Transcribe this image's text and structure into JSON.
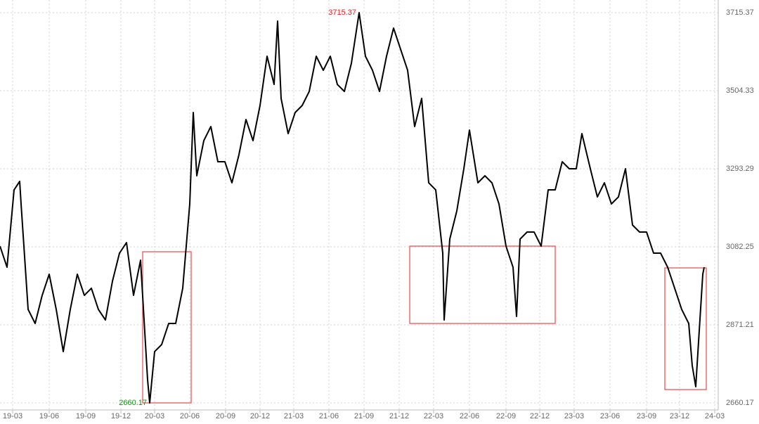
{
  "chart_data": {
    "type": "line",
    "x": [
      0,
      1,
      2,
      2.8,
      3,
      4,
      5,
      6,
      7,
      8,
      9,
      10,
      11,
      12,
      13,
      14,
      15,
      16,
      17,
      18,
      19,
      20,
      21,
      21.3,
      22,
      23,
      24,
      25,
      26,
      27,
      27.5,
      28,
      29,
      30,
      31,
      32,
      33,
      34,
      35,
      36,
      37,
      38,
      39,
      39.5,
      40,
      41,
      42,
      43,
      44,
      45,
      46,
      47,
      48,
      49,
      50,
      51.1,
      52,
      53,
      54,
      55,
      56,
      57,
      58,
      59,
      60,
      61,
      62,
      63,
      63.2,
      64,
      65,
      66,
      66.8,
      68,
      69,
      70,
      71,
      72,
      73,
      73.5,
      74,
      75,
      76,
      77,
      78,
      79,
      80,
      81,
      82,
      82.8,
      84,
      85,
      86,
      87,
      88,
      89,
      90,
      91,
      92,
      93,
      94,
      95,
      96,
      97,
      98,
      98.5,
      99,
      100,
      100.2
    ],
    "values": [
      3084.1,
      3027.1,
      3236.2,
      3259.1,
      3198.2,
      2913.0,
      2875.0,
      2951.0,
      3008.1,
      2913.0,
      2798.9,
      2913.0,
      3008.1,
      2951.0,
      2970.1,
      2913.0,
      2884.5,
      2989.1,
      3065.1,
      3093.6,
      2951.0,
      3046.1,
      2722.9,
      2660.17,
      2798.9,
      2817.9,
      2875.0,
      2875.0,
      2970.1,
      3198.2,
      3445.4,
      3274.3,
      3369.3,
      3407.4,
      3312.3,
      3312.3,
      3255.3,
      3331.3,
      3426.4,
      3369.3,
      3464.4,
      3597.5,
      3521.4,
      3692.6,
      3483.4,
      3388.3,
      3445.4,
      3464.4,
      3502.4,
      3597.5,
      3559.5,
      3597.5,
      3521.4,
      3502.4,
      3578.5,
      3715.37,
      3597.5,
      3559.5,
      3502.4,
      3597.5,
      3673.6,
      3616.5,
      3559.5,
      3407.4,
      3483.4,
      3255.3,
      3236.2,
      3065.1,
      2884.5,
      3103.1,
      3179.2,
      3293.3,
      3397.8,
      3255.3,
      3274.3,
      3255.3,
      3198.2,
      3084.1,
      3027.1,
      2894.0,
      3103.1,
      3122.2,
      3122.2,
      3084.1,
      3236.2,
      3236.2,
      3312.3,
      3293.3,
      3293.3,
      3388.3,
      3293.3,
      3217.2,
      3255.3,
      3198.2,
      3217.2,
      3293.3,
      3141.2,
      3122.2,
      3122.2,
      3065.1,
      3065.1,
      3027.1,
      2970.1,
      2913.0,
      2875.0,
      2760.9,
      2703.9,
      3008.1,
      3027.1
    ],
    "color": "#000000",
    "xlim": [
      0,
      102
    ],
    "xticks": [
      {
        "value": 1.8,
        "label": "19-03"
      },
      {
        "value": 7,
        "label": "19-06"
      },
      {
        "value": 12.2,
        "label": "19-09"
      },
      {
        "value": 17.2,
        "label": "19-12"
      },
      {
        "value": 22,
        "label": "20-03"
      },
      {
        "value": 27,
        "label": "20-06"
      },
      {
        "value": 32.1,
        "label": "20-09"
      },
      {
        "value": 37,
        "label": "20-12"
      },
      {
        "value": 41.8,
        "label": "21-03"
      },
      {
        "value": 46.8,
        "label": "21-06"
      },
      {
        "value": 51.8,
        "label": "21-09"
      },
      {
        "value": 56.8,
        "label": "21-12"
      },
      {
        "value": 61.7,
        "label": "22-03"
      },
      {
        "value": 66.8,
        "label": "22-06"
      },
      {
        "value": 72,
        "label": "22-09"
      },
      {
        "value": 76.8,
        "label": "22-12"
      },
      {
        "value": 81.7,
        "label": "23-03"
      },
      {
        "value": 86.8,
        "label": "23-06"
      },
      {
        "value": 92,
        "label": "23-09"
      },
      {
        "value": 96.7,
        "label": "23-12"
      },
      {
        "value": 101.7,
        "label": "24-03"
      }
    ],
    "ylim": [
      2660.17,
      3715.37
    ],
    "yticks": [
      2660.17,
      2871.21,
      3082.25,
      3293.29,
      3504.33,
      3715.37
    ],
    "grid": true,
    "max_label_color": "#e02020",
    "min_label_color": "#1a8a1a"
  }
}
